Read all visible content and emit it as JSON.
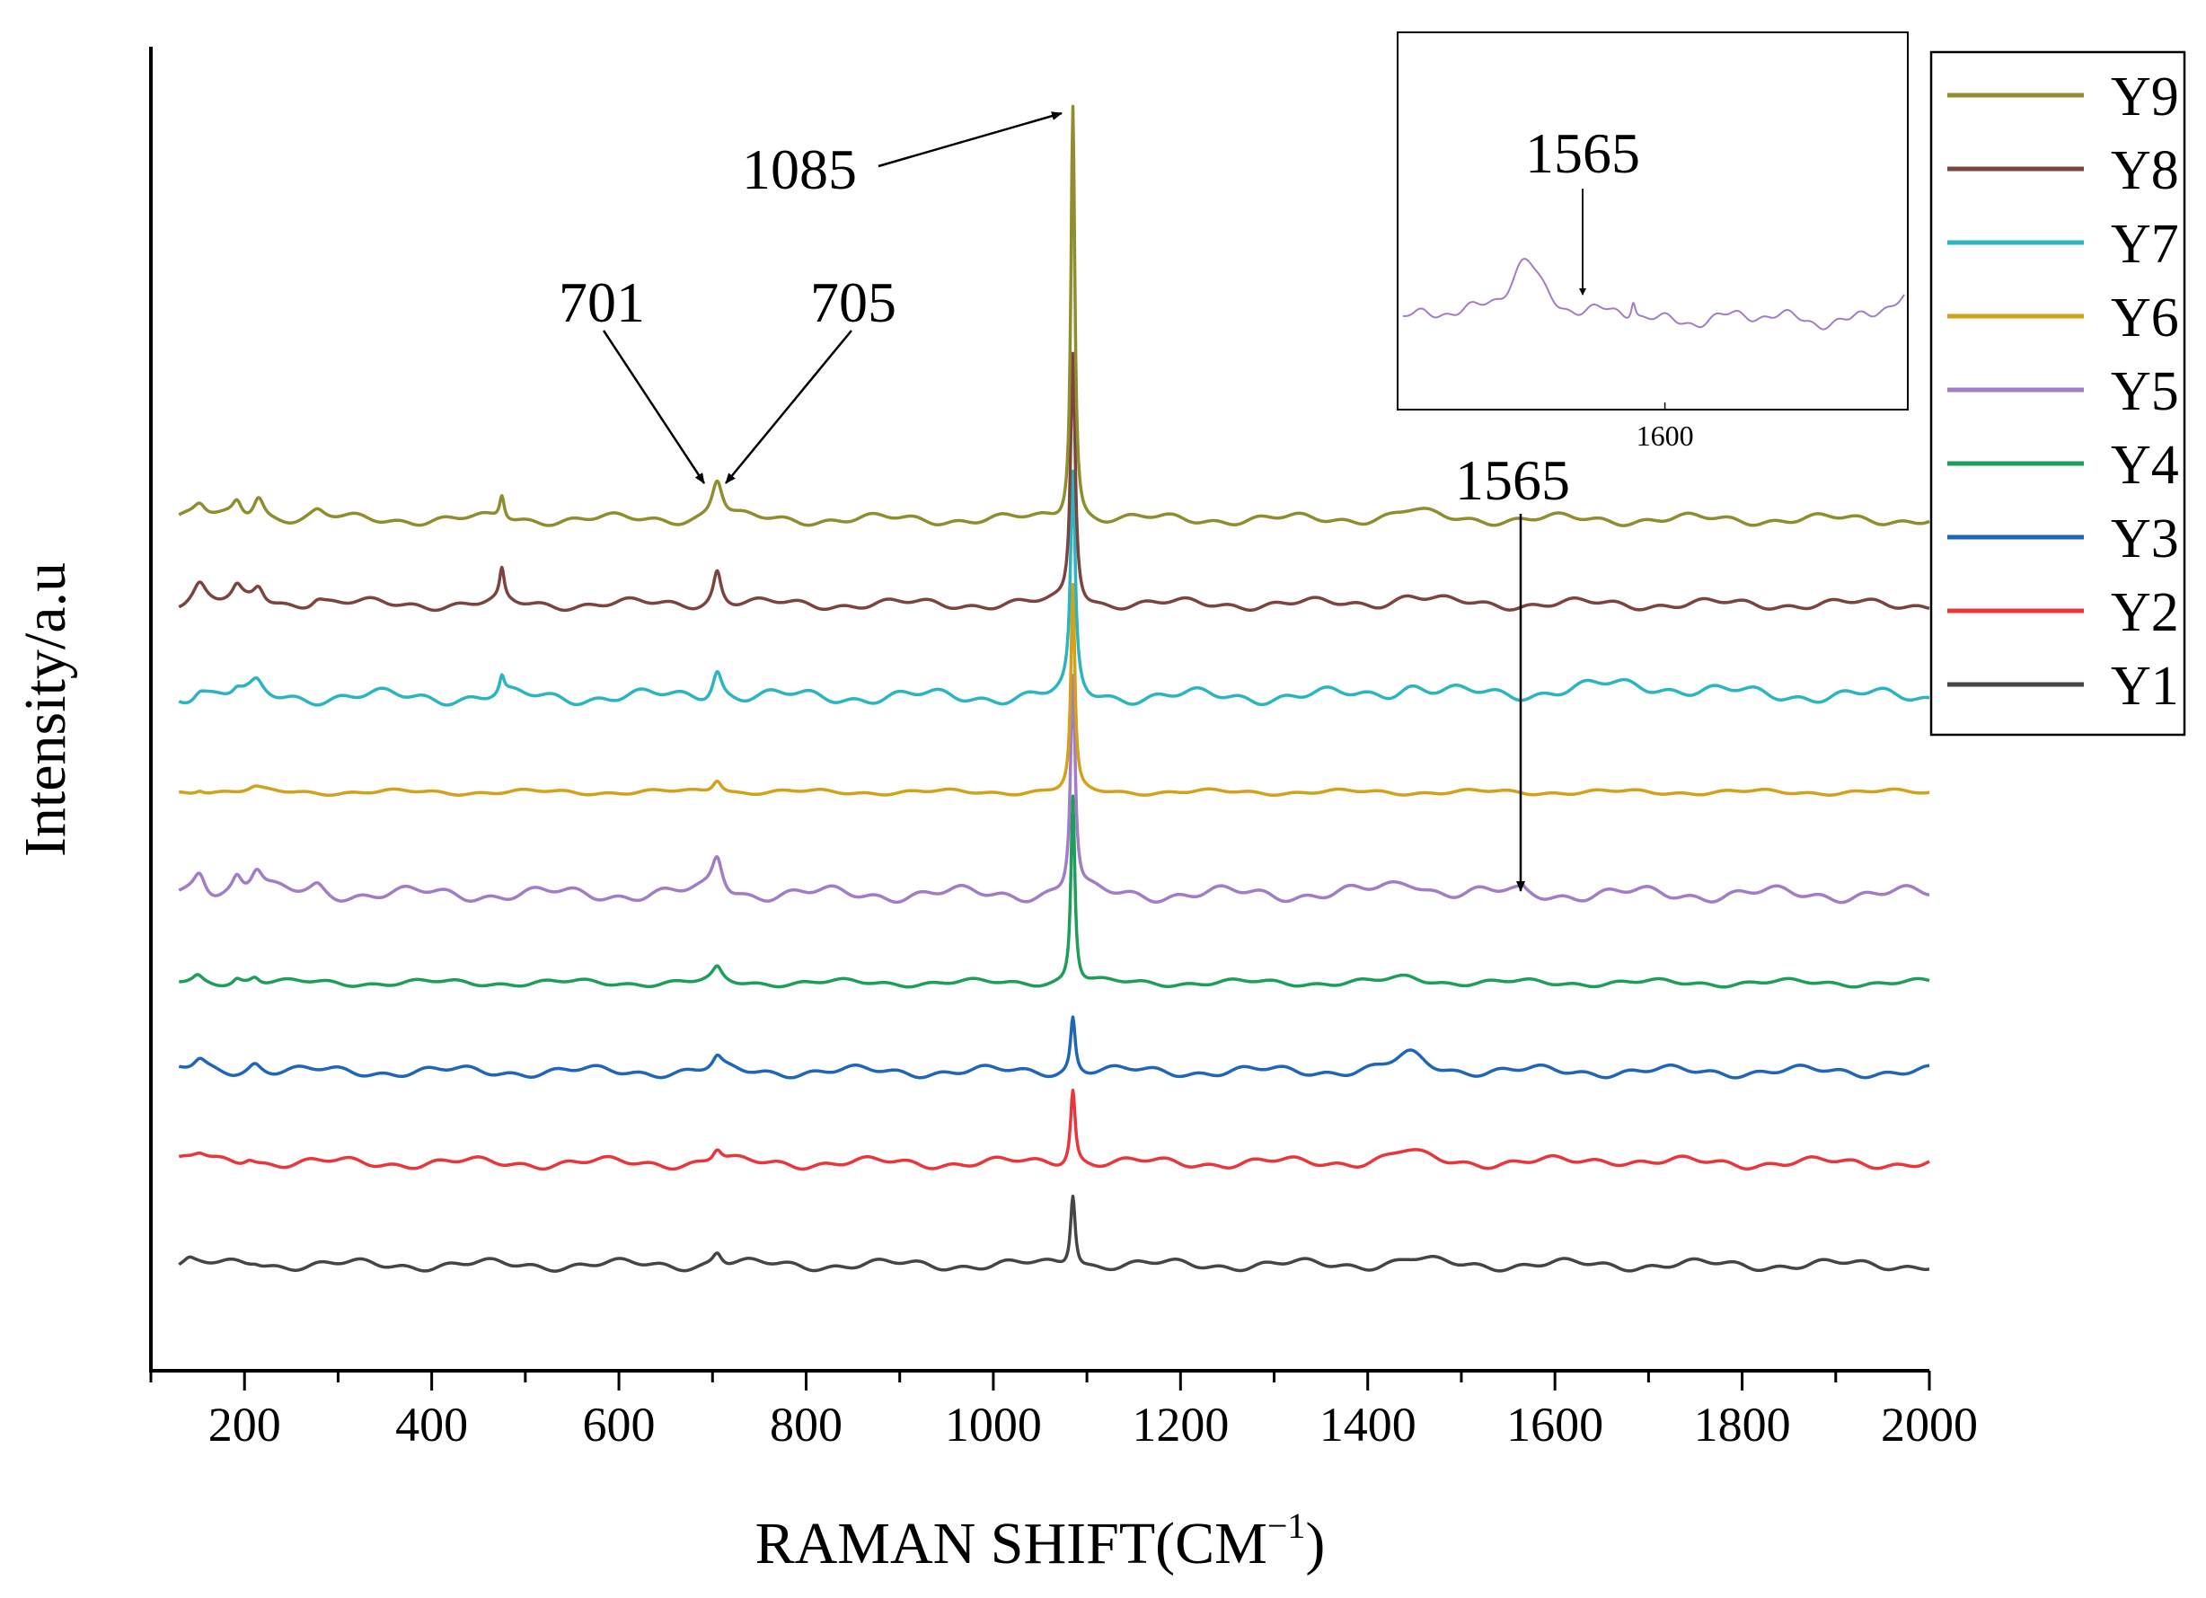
{
  "chart_data": {
    "type": "line",
    "title": "",
    "xlabel": "RAMAN SHIFT(CM",
    "xlabel_sup": "−1",
    "xlabel_suffix": ")",
    "ylabel": "Intensity/a.u",
    "xlim": [
      100,
      2000
    ],
    "x_ticks": [
      200,
      400,
      600,
      800,
      1000,
      1200,
      1400,
      1600,
      1800,
      2000
    ],
    "x_tick_labels": [
      "200",
      "400",
      "600",
      "800",
      "1000",
      "1200",
      "1400",
      "1600",
      "1800",
      "2000"
    ],
    "y_units": "intensity a.u. (vertically offset, no tick labels)",
    "ylim": [
      0,
      1000
    ],
    "grid": false,
    "legend_position": "right-top",
    "series": [
      {
        "name": "Y1",
        "color": "#454545",
        "baseline": 80,
        "peaks": [
          [
            141,
            3,
            6
          ],
          [
            211,
            3,
            8
          ],
          [
            705,
            10,
            6
          ],
          [
            1085,
            55,
            3
          ],
          [
            1445,
            4,
            20
          ]
        ],
        "wave": 3,
        "phase": 0.5
      },
      {
        "name": "Y2",
        "color": "#e8363a",
        "baseline": 157,
        "peaks": [
          [
            152,
            6,
            10
          ],
          [
            205,
            5,
            8
          ],
          [
            705,
            10,
            6
          ],
          [
            1085,
            57,
            3
          ],
          [
            1440,
            8,
            22
          ],
          [
            1660,
            3,
            25
          ]
        ],
        "wave": 3,
        "phase": 1.3
      },
      {
        "name": "Y3",
        "color": "#1f66b8",
        "baseline": 226,
        "peaks": [
          [
            152,
            8,
            8
          ],
          [
            211,
            7,
            8
          ],
          [
            705,
            9,
            6
          ],
          [
            1085,
            42,
            3
          ],
          [
            1445,
            12,
            20
          ]
        ],
        "wave": 3,
        "phase": 2.1
      },
      {
        "name": "Y4",
        "color": "#1e9e5a",
        "baseline": 293,
        "peaks": [
          [
            150,
            5,
            6
          ],
          [
            192,
            4,
            5
          ],
          [
            211,
            5,
            6
          ],
          [
            705,
            10,
            6
          ],
          [
            1085,
            142,
            2.5
          ],
          [
            1445,
            4,
            20
          ]
        ],
        "wave": 2,
        "phase": 2.9
      },
      {
        "name": "Y5",
        "color": "#a07dc6",
        "baseline": 360,
        "peaks": [
          [
            152,
            18,
            8
          ],
          [
            192,
            12,
            6
          ],
          [
            213,
            18,
            8
          ],
          [
            278,
            6,
            8
          ],
          [
            705,
            28,
            7
          ],
          [
            1085,
            165,
            3
          ],
          [
            1445,
            10,
            22
          ],
          [
            1565,
            3,
            3
          ]
        ],
        "wave": 4,
        "phase": 3.7
      },
      {
        "name": "Y6",
        "color": "#d4a11a",
        "baseline": 437,
        "peaks": [
          [
            152,
            3,
            6
          ],
          [
            211,
            3,
            8
          ],
          [
            705,
            10,
            6
          ],
          [
            1085,
            155,
            2.5
          ]
        ],
        "wave": 1.5,
        "phase": 4.5
      },
      {
        "name": "Y7",
        "color": "#2ab5c1",
        "baseline": 509,
        "peaks": [
          [
            152,
            6,
            8
          ],
          [
            192,
            5,
            6
          ],
          [
            213,
            8,
            7
          ],
          [
            475,
            13,
            3
          ],
          [
            705,
            22,
            6
          ],
          [
            1085,
            165,
            3
          ],
          [
            1445,
            8,
            22
          ],
          [
            1680,
            9,
            80
          ]
        ],
        "wave": 4,
        "phase": 5.3
      },
      {
        "name": "Y8",
        "color": "#7d433e",
        "baseline": 579,
        "peaks": [
          [
            152,
            14,
            8
          ],
          [
            192,
            10,
            6
          ],
          [
            215,
            13,
            7
          ],
          [
            278,
            5,
            8
          ],
          [
            475,
            23,
            3
          ],
          [
            705,
            26,
            5
          ],
          [
            1085,
            190,
            3
          ],
          [
            1445,
            6,
            22
          ]
        ],
        "wave": 3,
        "phase": 6.1
      },
      {
        "name": "Y9",
        "color": "#8f8e2e",
        "baseline": 643,
        "peaks": [
          [
            152,
            10,
            8
          ],
          [
            192,
            12,
            6
          ],
          [
            215,
            18,
            7
          ],
          [
            278,
            5,
            8
          ],
          [
            475,
            18,
            3
          ],
          [
            705,
            30,
            7
          ],
          [
            1085,
            315,
            2.5
          ],
          [
            1445,
            6,
            22
          ]
        ],
        "wave": 3,
        "phase": 0.9
      }
    ],
    "annotations": [
      {
        "label": "1085",
        "x": 1085
      },
      {
        "label": "701",
        "x": 701
      },
      {
        "label": "705",
        "x": 705
      },
      {
        "label": "1565",
        "x": 1565
      }
    ],
    "inset": {
      "series": "Y5",
      "xlim": [
        1310,
        1865
      ],
      "x_ticks": [
        1600
      ],
      "x_tick_labels": [
        "1600"
      ],
      "annotation": {
        "label": "1565",
        "x": 1565
      }
    }
  }
}
